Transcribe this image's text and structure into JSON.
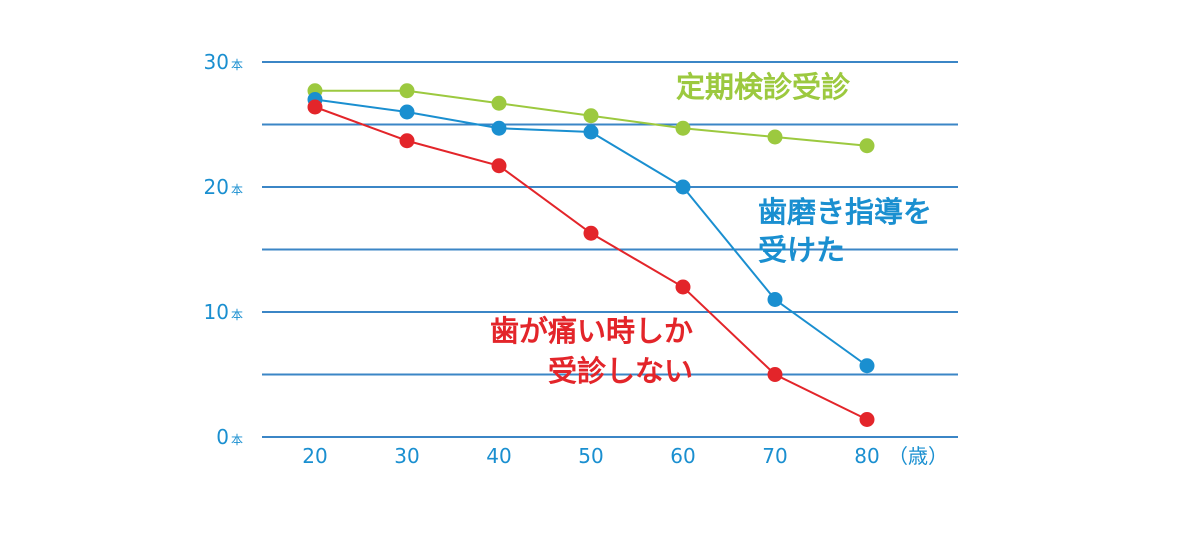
{
  "chart_data": {
    "type": "line",
    "title": "",
    "xlabel": "",
    "ylabel": "",
    "x": [
      20,
      30,
      40,
      50,
      60,
      70,
      80
    ],
    "x_unit": "（歳）",
    "y_ticks": [
      {
        "value": 0,
        "label": "0",
        "unit": "本"
      },
      {
        "value": 10,
        "label": "10",
        "unit": "本"
      },
      {
        "value": 20,
        "label": "20",
        "unit": "本"
      },
      {
        "value": 30,
        "label": "30",
        "unit": "本"
      }
    ],
    "ylim": [
      0,
      30
    ],
    "grid": true,
    "series": [
      {
        "name": "定期検診受診",
        "color": "#9cc93f",
        "values": [
          27.7,
          27.7,
          26.7,
          25.7,
          24.7,
          24.0,
          23.3
        ]
      },
      {
        "name": "歯磨き指導を受けた",
        "color": "#1a8fd0",
        "values": [
          27.0,
          26.0,
          24.7,
          24.4,
          20.0,
          11.0,
          5.7
        ]
      },
      {
        "name": "歯が痛い時しか受診しない",
        "color": "#e3252a",
        "values": [
          26.4,
          23.7,
          21.7,
          16.3,
          12.0,
          5.0,
          1.4
        ]
      }
    ],
    "annotations": [
      {
        "series": 0,
        "lines": [
          "定期検診受診"
        ]
      },
      {
        "series": 1,
        "lines": [
          "歯磨き指導を",
          "受けた"
        ]
      },
      {
        "series": 2,
        "lines": [
          "歯が痛い時しか",
          "受診しない"
        ]
      }
    ]
  }
}
